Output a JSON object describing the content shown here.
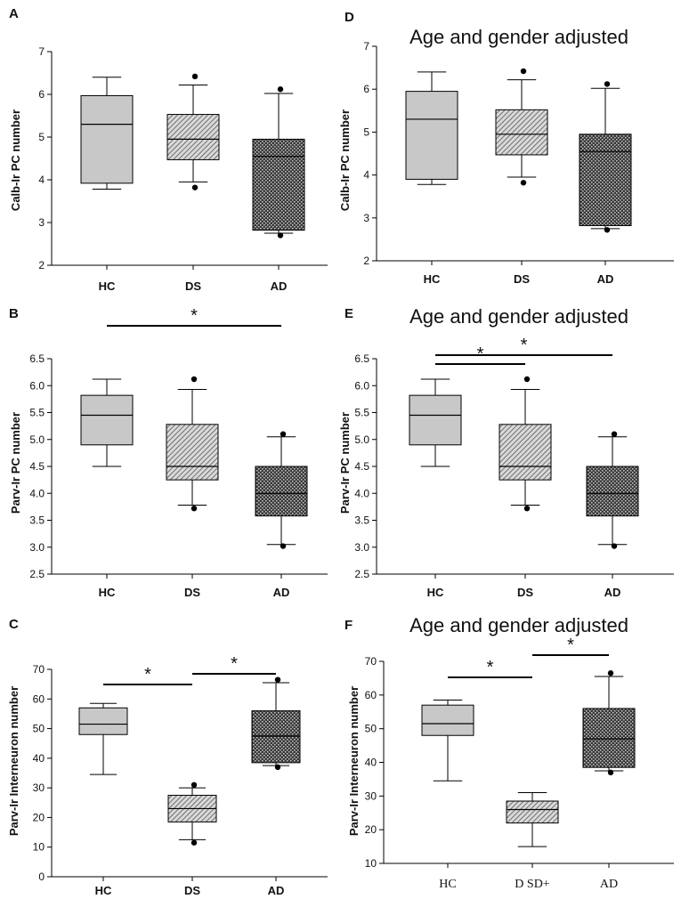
{
  "chart_data": [
    {
      "panel": "A",
      "type": "box",
      "title": "",
      "ylabel": "Calb-Ir PC number",
      "ylim": [
        2,
        7
      ],
      "yticks": [
        "2",
        "3",
        "4",
        "5",
        "6",
        "7"
      ],
      "categories": [
        "HC",
        "DS",
        "AD"
      ],
      "boxes": [
        {
          "group": "HC",
          "whisker_low": 3.78,
          "q1": 3.92,
          "median": 5.3,
          "q3": 5.97,
          "whisker_high": 6.4,
          "outliers": [],
          "pattern": "gray"
        },
        {
          "group": "DS",
          "whisker_low": 3.95,
          "q1": 4.47,
          "median": 4.95,
          "q3": 5.53,
          "whisker_high": 6.22,
          "outliers": [
            3.82,
            6.42
          ],
          "pattern": "hatch"
        },
        {
          "group": "AD",
          "whisker_low": 2.75,
          "q1": 2.82,
          "median": 4.55,
          "q3": 4.95,
          "whisker_high": 6.02,
          "outliers": [
            2.7,
            6.12
          ],
          "pattern": "dots"
        }
      ],
      "significance": []
    },
    {
      "panel": "B",
      "type": "box",
      "title": "",
      "ylabel": "Parv-Ir PC number",
      "ylim": [
        2.5,
        6.5
      ],
      "yticks": [
        "2.5",
        "3.0",
        "3.5",
        "4.0",
        "4.5",
        "5.0",
        "5.5",
        "6.0",
        "6.5"
      ],
      "categories": [
        "HC",
        "DS",
        "AD"
      ],
      "boxes": [
        {
          "group": "HC",
          "whisker_low": 4.5,
          "q1": 4.9,
          "median": 5.45,
          "q3": 5.82,
          "whisker_high": 6.12,
          "outliers": [],
          "pattern": "gray"
        },
        {
          "group": "DS",
          "whisker_low": 3.78,
          "q1": 4.25,
          "median": 4.5,
          "q3": 5.28,
          "whisker_high": 5.93,
          "outliers": [
            3.72,
            6.12
          ],
          "pattern": "hatch"
        },
        {
          "group": "AD",
          "whisker_low": 3.05,
          "q1": 3.58,
          "median": 4.0,
          "q3": 4.5,
          "whisker_high": 5.05,
          "outliers": [
            3.02,
            5.1
          ],
          "pattern": "dots"
        }
      ],
      "significance": [
        {
          "from": "HC",
          "to": "AD",
          "label": "*"
        }
      ]
    },
    {
      "panel": "C",
      "type": "box",
      "title": "",
      "ylabel": "Parv-Ir Interneuron number",
      "ylim": [
        0,
        70
      ],
      "yticks": [
        "0",
        "10",
        "20",
        "30",
        "40",
        "50",
        "60",
        "70"
      ],
      "categories": [
        "HC",
        "DS",
        "AD"
      ],
      "boxes": [
        {
          "group": "HC",
          "whisker_low": 34.5,
          "q1": 48.0,
          "median": 51.5,
          "q3": 57.0,
          "whisker_high": 58.5,
          "outliers": [],
          "pattern": "gray"
        },
        {
          "group": "DS",
          "whisker_low": 12.5,
          "q1": 18.5,
          "median": 23.0,
          "q3": 27.5,
          "whisker_high": 30.0,
          "outliers": [
            11.5,
            31.0
          ],
          "pattern": "hatch"
        },
        {
          "group": "AD",
          "whisker_low": 37.5,
          "q1": 38.5,
          "median": 47.5,
          "q3": 56.0,
          "whisker_high": 65.5,
          "outliers": [
            37.0,
            66.5
          ],
          "pattern": "dots"
        }
      ],
      "significance": [
        {
          "from": "HC",
          "to": "DS",
          "label": "*"
        },
        {
          "from": "DS",
          "to": "AD",
          "label": "*"
        }
      ]
    },
    {
      "panel": "D",
      "type": "box",
      "title": "Age and gender adjusted",
      "ylabel": "Calb-Ir PC number",
      "ylim": [
        2,
        7
      ],
      "yticks": [
        "2",
        "3",
        "4",
        "5",
        "6",
        "7"
      ],
      "categories": [
        "HC",
        "DS",
        "AD"
      ],
      "boxes": [
        {
          "group": "HC",
          "whisker_low": 3.78,
          "q1": 3.9,
          "median": 5.3,
          "q3": 5.95,
          "whisker_high": 6.4,
          "outliers": [],
          "pattern": "gray"
        },
        {
          "group": "DS",
          "whisker_low": 3.95,
          "q1": 4.47,
          "median": 4.95,
          "q3": 5.52,
          "whisker_high": 6.22,
          "outliers": [
            3.82,
            6.42
          ],
          "pattern": "hatch"
        },
        {
          "group": "AD",
          "whisker_low": 2.75,
          "q1": 2.82,
          "median": 4.55,
          "q3": 4.95,
          "whisker_high": 6.02,
          "outliers": [
            2.72,
            6.12
          ],
          "pattern": "dots"
        }
      ],
      "significance": []
    },
    {
      "panel": "E",
      "type": "box",
      "title": "Age and gender adjusted",
      "ylabel": "Parv-Ir PC number",
      "ylim": [
        2.5,
        6.5
      ],
      "yticks": [
        "2.5",
        "3.0",
        "3.5",
        "4.0",
        "4.5",
        "5.0",
        "5.5",
        "6.0",
        "6.5"
      ],
      "categories": [
        "HC",
        "DS",
        "AD"
      ],
      "boxes": [
        {
          "group": "HC",
          "whisker_low": 4.5,
          "q1": 4.9,
          "median": 5.45,
          "q3": 5.82,
          "whisker_high": 6.12,
          "outliers": [],
          "pattern": "gray"
        },
        {
          "group": "DS",
          "whisker_low": 3.78,
          "q1": 4.25,
          "median": 4.5,
          "q3": 5.28,
          "whisker_high": 5.93,
          "outliers": [
            3.72,
            6.12
          ],
          "pattern": "hatch"
        },
        {
          "group": "AD",
          "whisker_low": 3.05,
          "q1": 3.58,
          "median": 4.0,
          "q3": 4.5,
          "whisker_high": 5.05,
          "outliers": [
            3.02,
            5.1
          ],
          "pattern": "dots"
        }
      ],
      "significance": [
        {
          "from": "HC",
          "to": "DS",
          "label": "*"
        },
        {
          "from": "HC",
          "to": "AD",
          "label": "*"
        }
      ]
    },
    {
      "panel": "F",
      "type": "box",
      "title": "Age and gender adjusted",
      "ylabel": "Parv-Ir Interneuron number",
      "ylim": [
        10,
        70
      ],
      "yticks": [
        "10",
        "20",
        "30",
        "40",
        "50",
        "60",
        "70"
      ],
      "categories": [
        "HC",
        "DSD+",
        "AD"
      ],
      "category_display": [
        "HC",
        "D SD+",
        "AD"
      ],
      "boxes": [
        {
          "group": "HC",
          "whisker_low": 34.5,
          "q1": 48.0,
          "median": 51.5,
          "q3": 57.0,
          "whisker_high": 58.5,
          "outliers": [],
          "pattern": "gray"
        },
        {
          "group": "DSD+",
          "whisker_low": 15.0,
          "q1": 22.0,
          "median": 26.0,
          "q3": 28.5,
          "whisker_high": 31.0,
          "outliers": [],
          "pattern": "hatch"
        },
        {
          "group": "AD",
          "whisker_low": 37.5,
          "q1": 38.5,
          "median": 47.0,
          "q3": 56.0,
          "whisker_high": 65.5,
          "outliers": [
            37.0,
            66.5
          ],
          "pattern": "dots"
        }
      ],
      "significance": [
        {
          "from": "HC",
          "to": "DSD+",
          "label": "*"
        },
        {
          "from": "DSD+",
          "to": "AD",
          "label": "*"
        }
      ]
    }
  ]
}
